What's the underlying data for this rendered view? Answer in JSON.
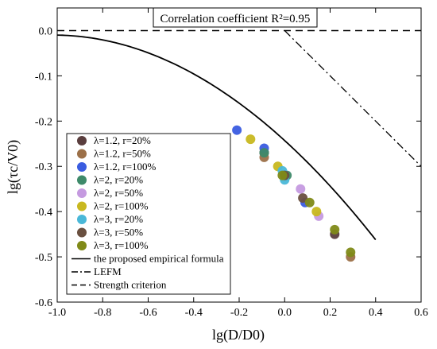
{
  "chart_data": {
    "type": "scatter",
    "annotation": "Correlation coefficient R²=0.95",
    "xlabel": "lg(D/D0)",
    "ylabel": "lg(τc/V0)",
    "xlim": [
      -1.0,
      0.6
    ],
    "ylim": [
      -0.6,
      0.05
    ],
    "x_ticks": [
      -1.0,
      -0.8,
      -0.6,
      -0.4,
      -0.2,
      0.0,
      0.2,
      0.4,
      0.6
    ],
    "x_tick_labels": [
      "-1.0",
      "-0.8",
      "-0.6",
      "-0.4",
      "-0.2",
      "0.0",
      "0.2",
      "0.4",
      "0.6"
    ],
    "y_ticks": [
      0.0,
      -0.1,
      -0.2,
      -0.3,
      -0.4,
      -0.5,
      -0.6
    ],
    "y_tick_labels": [
      "0.0",
      "-0.1",
      "-0.2",
      "-0.3",
      "-0.4",
      "-0.5",
      "-0.6"
    ],
    "grid": false,
    "legend_position": "left",
    "series": [
      {
        "name": "λ=1.2, r=20%",
        "color": "#5a3e3e",
        "points": [
          [
            -0.09,
            -0.27
          ],
          [
            0.22,
            -0.45
          ]
        ]
      },
      {
        "name": "λ=1.2, r=50%",
        "color": "#9c7048",
        "points": [
          [
            -0.09,
            -0.28
          ],
          [
            0.29,
            -0.5
          ]
        ]
      },
      {
        "name": "λ=1.2, r=100%",
        "color": "#3a5ce0",
        "points": [
          [
            -0.21,
            -0.22
          ],
          [
            -0.09,
            -0.26
          ],
          [
            0.09,
            -0.38
          ]
        ]
      },
      {
        "name": "λ=2, r=20%",
        "color": "#3e8a6a",
        "points": [
          [
            -0.09,
            -0.27
          ],
          [
            0.01,
            -0.32
          ]
        ]
      },
      {
        "name": "λ=2, r=50%",
        "color": "#c59ae0",
        "points": [
          [
            0.07,
            -0.35
          ],
          [
            0.15,
            -0.41
          ]
        ]
      },
      {
        "name": "λ=2, r=100%",
        "color": "#c8b820",
        "points": [
          [
            -0.15,
            -0.24
          ],
          [
            -0.03,
            -0.3
          ],
          [
            0.14,
            -0.4
          ]
        ]
      },
      {
        "name": "λ=3, r=20%",
        "color": "#4ab8d8",
        "points": [
          [
            -0.01,
            -0.31
          ],
          [
            0.0,
            -0.33
          ]
        ]
      },
      {
        "name": "λ=3, r=50%",
        "color": "#6a5040",
        "points": [
          [
            0.0,
            -0.32
          ],
          [
            0.08,
            -0.37
          ]
        ]
      },
      {
        "name": "λ=3, r=100%",
        "color": "#808a18",
        "points": [
          [
            -0.01,
            -0.32
          ],
          [
            0.11,
            -0.38
          ],
          [
            0.22,
            -0.44
          ],
          [
            0.29,
            -0.49
          ]
        ]
      }
    ],
    "lines": [
      {
        "name": "the proposed empirical formula",
        "style": "solid"
      },
      {
        "name": "LEFM",
        "style": "dashdot"
      },
      {
        "name": "Strength criterion",
        "style": "dashed"
      }
    ]
  }
}
